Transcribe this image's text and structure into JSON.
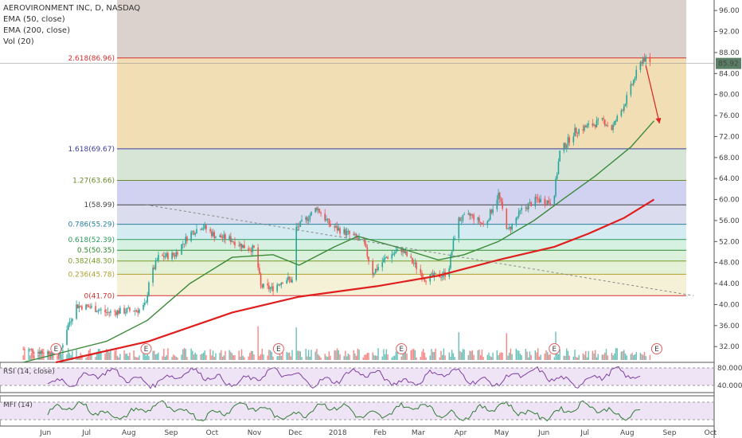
{
  "legend": {
    "symbol": "AEROVIRONMENT INC, D, NASDAQ",
    "ema50": "EMA (50, close)",
    "ema200": "EMA (200, close)",
    "vol": "Vol (20)",
    "rsi": "RSI (14, close)",
    "mfi": "MFI (14)"
  },
  "colors": {
    "up": "#26a69a",
    "down": "#ef5350",
    "ema50": "#3a8a3a",
    "ema200": "#e01e1e",
    "rsi": "#7e3fa0",
    "mfi": "#2e7d32",
    "price_tag": "#5b7f66"
  },
  "chart_data": {
    "type": "candlestick",
    "x_ticks": [
      "Jun",
      "Jul",
      "Aug",
      "Sep",
      "Oct",
      "Nov",
      "Dec",
      "2018",
      "Feb",
      "Mar",
      "Apr",
      "May",
      "Jun",
      "Jul",
      "Aug",
      "Sep",
      "Oct"
    ],
    "y_ticks": [
      "96.00",
      "92.00",
      "88.00",
      "84.00",
      "80.00",
      "76.00",
      "72.00",
      "68.00",
      "64.00",
      "60.00",
      "56.00",
      "52.00",
      "48.00",
      "44.00",
      "40.00",
      "36.00",
      "32.00"
    ],
    "y_range": [
      29,
      98
    ],
    "last_price": "85.92",
    "fib_levels": [
      {
        "label": "2.618(86.96)",
        "value": 86.96
      },
      {
        "label": "1.618(69.67)",
        "value": 69.67
      },
      {
        "label": "1.27(63.66)",
        "value": 63.66
      },
      {
        "label": "1(58.99)",
        "value": 58.99
      },
      {
        "label": "0.786(55.29)",
        "value": 55.29
      },
      {
        "label": "0.618(52.39)",
        "value": 52.39
      },
      {
        "label": "0.5(50.35)",
        "value": 50.35
      },
      {
        "label": "0.382(48.30)",
        "value": 48.3
      },
      {
        "label": "0.236(45.78)",
        "value": 45.78
      },
      {
        "label": "0(41.70)",
        "value": 41.7
      }
    ],
    "earnings_marker": "E",
    "rsi_ticks": [
      "80.0000",
      "40.0000"
    ],
    "price_path": [
      [
        "2017-06-01",
        31.5
      ],
      [
        "2017-06-15",
        31.0
      ],
      [
        "2017-06-28",
        30.8
      ],
      [
        "2017-07-03",
        35.5
      ],
      [
        "2017-07-10",
        39.8
      ],
      [
        "2017-07-20",
        39.5
      ],
      [
        "2017-08-01",
        38.5
      ],
      [
        "2017-08-15",
        38.8
      ],
      [
        "2017-08-25",
        39.0
      ],
      [
        "2017-08-30",
        40.0
      ],
      [
        "2017-09-01",
        44.5
      ],
      [
        "2017-09-08",
        49.0
      ],
      [
        "2017-09-20",
        49.5
      ],
      [
        "2017-10-01",
        53.5
      ],
      [
        "2017-10-10",
        55.0
      ],
      [
        "2017-10-20",
        53.0
      ],
      [
        "2017-10-30",
        52.5
      ],
      [
        "2017-11-10",
        51.0
      ],
      [
        "2017-11-18",
        50.5
      ],
      [
        "2017-11-22",
        43.5
      ],
      [
        "2017-11-30",
        43.0
      ],
      [
        "2017-12-10",
        45.0
      ],
      [
        "2017-12-15",
        44.5
      ],
      [
        "2017-12-18",
        54.5
      ],
      [
        "2017-12-28",
        57.0
      ],
      [
        "2018-01-02",
        58.5
      ],
      [
        "2018-01-12",
        55.0
      ],
      [
        "2018-01-25",
        53.5
      ],
      [
        "2018-02-05",
        52.0
      ],
      [
        "2018-02-12",
        46.0
      ],
      [
        "2018-02-22",
        49.0
      ],
      [
        "2018-03-05",
        50.5
      ],
      [
        "2018-03-15",
        47.5
      ],
      [
        "2018-03-22",
        45.0
      ],
      [
        "2018-04-01",
        45.5
      ],
      [
        "2018-04-08",
        46.0
      ],
      [
        "2018-04-15",
        56.0
      ],
      [
        "2018-04-25",
        57.0
      ],
      [
        "2018-05-05",
        55.0
      ],
      [
        "2018-05-15",
        61.0
      ],
      [
        "2018-05-22",
        54.0
      ],
      [
        "2018-06-01",
        58.0
      ],
      [
        "2018-06-12",
        60.0
      ],
      [
        "2018-06-24",
        59.5
      ],
      [
        "2018-06-29",
        69.0
      ],
      [
        "2018-07-10",
        73.0
      ],
      [
        "2018-07-20",
        74.0
      ],
      [
        "2018-07-31",
        75.0
      ],
      [
        "2018-08-06",
        73.5
      ],
      [
        "2018-08-15",
        78.0
      ],
      [
        "2018-08-24",
        84.0
      ],
      [
        "2018-08-29",
        87.0
      ],
      [
        "2018-09-03",
        85.9
      ]
    ],
    "ema50_path": [
      [
        "2017-06-01",
        29.0
      ],
      [
        "2017-08-01",
        33.0
      ],
      [
        "2017-08-31",
        37.0
      ],
      [
        "2017-10-01",
        44.0
      ],
      [
        "2017-11-01",
        49.0
      ],
      [
        "2017-12-01",
        49.5
      ],
      [
        "2017-12-20",
        47.5
      ],
      [
        "2018-01-15",
        51.0
      ],
      [
        "2018-02-01",
        53.0
      ],
      [
        "2018-03-01",
        51.0
      ],
      [
        "2018-04-01",
        48.5
      ],
      [
        "2018-04-20",
        49.5
      ],
      [
        "2018-05-15",
        52.0
      ],
      [
        "2018-06-10",
        56.0
      ],
      [
        "2018-07-01",
        60.0
      ],
      [
        "2018-07-25",
        64.5
      ],
      [
        "2018-08-20",
        70.0
      ],
      [
        "2018-09-06",
        75.0
      ]
    ],
    "ema200_path": [
      [
        "2017-06-25",
        29.0
      ],
      [
        "2017-09-01",
        33.0
      ],
      [
        "2017-11-01",
        38.5
      ],
      [
        "2017-12-20",
        41.5
      ],
      [
        "2018-02-15",
        43.5
      ],
      [
        "2018-04-01",
        45.5
      ],
      [
        "2018-05-15",
        48.5
      ],
      [
        "2018-06-25",
        51.0
      ],
      [
        "2018-07-20",
        53.5
      ],
      [
        "2018-08-15",
        56.5
      ],
      [
        "2018-09-06",
        60.0
      ]
    ],
    "trendline": [
      [
        "2017-08-30",
        59.0
      ],
      [
        "2018-10-05",
        41.7
      ]
    ],
    "forecast_arrow": [
      [
        "2018-08-31",
        85.5
      ],
      [
        "2018-09-10",
        74.5
      ]
    ],
    "earnings_dates": [
      "2017-06-25",
      "2017-08-30",
      "2017-12-05",
      "2018-03-05",
      "2018-06-25",
      "2018-09-08"
    ]
  }
}
